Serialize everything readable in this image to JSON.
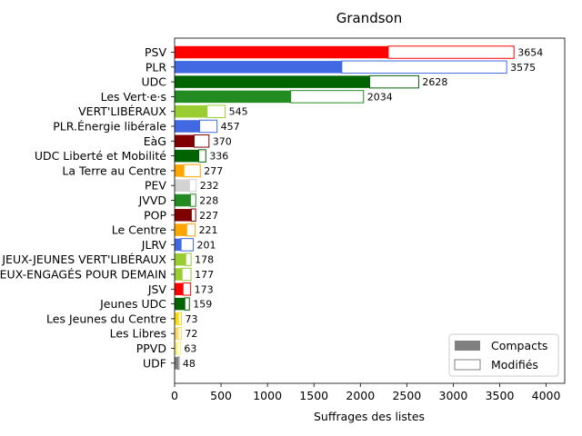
{
  "chart_data": {
    "type": "bar",
    "orientation": "horizontal",
    "stacked": true,
    "title": "Grandson",
    "xlabel": "Suffrages des listes",
    "ylabel": "",
    "xlim": [
      0,
      4200
    ],
    "xticks": [
      0,
      500,
      1000,
      1500,
      2000,
      2500,
      3000,
      3500,
      4000
    ],
    "legend_position": "bottom-right",
    "grid": false,
    "legend": [
      {
        "name": "Compacts",
        "style": "filled",
        "color": "#808080"
      },
      {
        "name": "Modifiés",
        "style": "outline",
        "color": "#808080"
      }
    ],
    "categories": [
      {
        "label": "PSV",
        "compacts": 2300,
        "total": 3654,
        "value_label": "3654",
        "color": "#ff0000"
      },
      {
        "label": "PLR",
        "compacts": 1800,
        "total": 3575,
        "value_label": "3575",
        "color": "#4169e1"
      },
      {
        "label": "UDC",
        "compacts": 2100,
        "total": 2628,
        "value_label": "2628",
        "color": "#006400"
      },
      {
        "label": "Les Vert·e·s",
        "compacts": 1250,
        "total": 2034,
        "value_label": "2034",
        "color": "#228b22"
      },
      {
        "label": "VERT'LIBÉRAUX",
        "compacts": 350,
        "total": 545,
        "value_label": "545",
        "color": "#9acd32"
      },
      {
        "label": "PLR.Énergie libérale",
        "compacts": 270,
        "total": 457,
        "value_label": "457",
        "color": "#4169e1"
      },
      {
        "label": "EàG",
        "compacts": 210,
        "total": 370,
        "value_label": "370",
        "color": "#800000"
      },
      {
        "label": "UDC Liberté et Mobilité",
        "compacts": 260,
        "total": 336,
        "value_label": "336",
        "color": "#006400"
      },
      {
        "label": "La Terre au Centre",
        "compacts": 100,
        "total": 277,
        "value_label": "277",
        "color": "#ffa500"
      },
      {
        "label": "PEV",
        "compacts": 160,
        "total": 232,
        "value_label": "232",
        "color": "#d3d3d3"
      },
      {
        "label": "JVVD",
        "compacts": 170,
        "total": 228,
        "value_label": "228",
        "color": "#228b22"
      },
      {
        "label": "POP",
        "compacts": 180,
        "total": 227,
        "value_label": "227",
        "color": "#800000"
      },
      {
        "label": "Le Centre",
        "compacts": 130,
        "total": 221,
        "value_label": "221",
        "color": "#ffa500"
      },
      {
        "label": "JLRV",
        "compacts": 70,
        "total": 201,
        "value_label": "201",
        "color": "#4169e1"
      },
      {
        "label": "JEUX-JEUNES VERT'LIBÉRAUX",
        "compacts": 120,
        "total": 178,
        "value_label": "178",
        "color": "#9acd32"
      },
      {
        "label": "JEUX-ENGAGÉS POUR DEMAIN",
        "compacts": 80,
        "total": 177,
        "value_label": "177",
        "color": "#9acd32"
      },
      {
        "label": "JSV",
        "compacts": 90,
        "total": 173,
        "value_label": "173",
        "color": "#ff0000"
      },
      {
        "label": "Jeunes UDC",
        "compacts": 110,
        "total": 159,
        "value_label": "159",
        "color": "#006400"
      },
      {
        "label": "Les Jeunes du Centre",
        "compacts": 40,
        "total": 73,
        "value_label": "73",
        "color": "#ffd700"
      },
      {
        "label": "Les Libres",
        "compacts": 40,
        "total": 72,
        "value_label": "72",
        "color": "#ffd966"
      },
      {
        "label": "PPVD",
        "compacts": 30,
        "total": 63,
        "value_label": "63",
        "color": "#fff176"
      },
      {
        "label": "UDF",
        "compacts": 35,
        "total": 48,
        "value_label": "48",
        "color": "#808080"
      }
    ]
  }
}
